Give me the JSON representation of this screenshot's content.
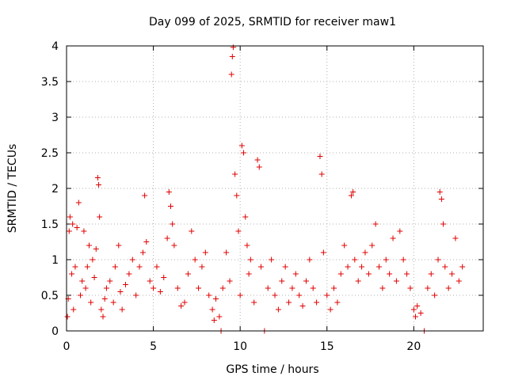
{
  "chart_data": {
    "type": "scatter",
    "title": "Day 099 of 2025, SRMTID for receiver maw1",
    "xlabel": "GPS time / hours",
    "ylabel": "SRMTID / TECUs",
    "xlim": [
      0,
      24
    ],
    "ylim": [
      0,
      4
    ],
    "xticks": [
      0,
      5,
      10,
      15,
      20
    ],
    "xtick_labels": [
      "0",
      "5",
      "10",
      "15",
      "20"
    ],
    "yticks": [
      0,
      0.5,
      1,
      1.5,
      2,
      2.5,
      3,
      3.5,
      4
    ],
    "ytick_labels": [
      "0",
      "0.5",
      "1",
      "1.5",
      "2",
      "2.5",
      "3",
      "3.5",
      "4"
    ],
    "grid": true,
    "marker": "+",
    "color": "#e00000",
    "series": [
      {
        "name": "maw1",
        "points": [
          [
            0.05,
            0.2
          ],
          [
            0.1,
            0.45
          ],
          [
            0.15,
            1.4
          ],
          [
            0.2,
            1.6
          ],
          [
            0.3,
            0.8
          ],
          [
            0.35,
            1.5
          ],
          [
            0.4,
            0.3
          ],
          [
            0.5,
            0.9
          ],
          [
            0.6,
            1.45
          ],
          [
            0.7,
            1.8
          ],
          [
            0.8,
            0.5
          ],
          [
            0.9,
            0.7
          ],
          [
            1.0,
            1.4
          ],
          [
            1.1,
            0.6
          ],
          [
            1.2,
            0.9
          ],
          [
            1.3,
            1.2
          ],
          [
            1.4,
            0.4
          ],
          [
            1.5,
            1.0
          ],
          [
            1.6,
            0.75
          ],
          [
            1.7,
            1.15
          ],
          [
            1.8,
            2.15
          ],
          [
            1.85,
            2.05
          ],
          [
            1.9,
            1.6
          ],
          [
            2.0,
            0.3
          ],
          [
            2.1,
            0.2
          ],
          [
            2.2,
            0.45
          ],
          [
            2.3,
            0.6
          ],
          [
            2.5,
            0.7
          ],
          [
            2.7,
            0.4
          ],
          [
            2.8,
            0.9
          ],
          [
            3.0,
            1.2
          ],
          [
            3.1,
            0.55
          ],
          [
            3.2,
            0.3
          ],
          [
            3.4,
            0.65
          ],
          [
            3.6,
            0.8
          ],
          [
            3.8,
            1.0
          ],
          [
            4.0,
            0.5
          ],
          [
            4.2,
            0.9
          ],
          [
            4.4,
            1.1
          ],
          [
            4.5,
            1.9
          ],
          [
            4.6,
            1.25
          ],
          [
            4.8,
            0.7
          ],
          [
            5.0,
            0.6
          ],
          [
            5.2,
            0.9
          ],
          [
            5.4,
            0.55
          ],
          [
            5.6,
            0.75
          ],
          [
            5.8,
            1.3
          ],
          [
            5.9,
            1.95
          ],
          [
            6.0,
            1.75
          ],
          [
            6.1,
            1.5
          ],
          [
            6.2,
            1.2
          ],
          [
            6.4,
            0.6
          ],
          [
            6.6,
            0.35
          ],
          [
            6.8,
            0.4
          ],
          [
            7.0,
            0.8
          ],
          [
            7.2,
            1.4
          ],
          [
            7.4,
            1.0
          ],
          [
            7.6,
            0.6
          ],
          [
            7.8,
            0.9
          ],
          [
            8.0,
            1.1
          ],
          [
            8.2,
            0.5
          ],
          [
            8.4,
            0.3
          ],
          [
            8.5,
            0.15
          ],
          [
            8.6,
            0.45
          ],
          [
            8.8,
            0.2
          ],
          [
            8.9,
            0.0
          ],
          [
            9.0,
            0.6
          ],
          [
            9.2,
            1.1
          ],
          [
            9.4,
            0.7
          ],
          [
            9.5,
            3.6
          ],
          [
            9.55,
            3.85
          ],
          [
            9.6,
            3.98
          ],
          [
            9.7,
            2.2
          ],
          [
            9.8,
            1.9
          ],
          [
            9.9,
            1.4
          ],
          [
            10.0,
            0.5
          ],
          [
            10.1,
            2.6
          ],
          [
            10.2,
            2.5
          ],
          [
            10.3,
            1.6
          ],
          [
            10.4,
            1.2
          ],
          [
            10.5,
            0.8
          ],
          [
            10.6,
            1.0
          ],
          [
            10.8,
            0.4
          ],
          [
            11.0,
            2.4
          ],
          [
            11.1,
            2.3
          ],
          [
            11.2,
            0.9
          ],
          [
            11.4,
            0.0
          ],
          [
            11.6,
            0.6
          ],
          [
            11.8,
            1.0
          ],
          [
            12.0,
            0.5
          ],
          [
            12.2,
            0.3
          ],
          [
            12.4,
            0.7
          ],
          [
            12.6,
            0.9
          ],
          [
            12.8,
            0.4
          ],
          [
            13.0,
            0.6
          ],
          [
            13.2,
            0.8
          ],
          [
            13.4,
            0.5
          ],
          [
            13.6,
            0.35
          ],
          [
            13.8,
            0.7
          ],
          [
            14.0,
            1.0
          ],
          [
            14.2,
            0.6
          ],
          [
            14.4,
            0.4
          ],
          [
            14.6,
            2.45
          ],
          [
            14.7,
            2.2
          ],
          [
            14.8,
            1.1
          ],
          [
            15.0,
            0.5
          ],
          [
            15.2,
            0.3
          ],
          [
            15.4,
            0.6
          ],
          [
            15.6,
            0.4
          ],
          [
            15.8,
            0.8
          ],
          [
            16.0,
            1.2
          ],
          [
            16.2,
            0.9
          ],
          [
            16.4,
            1.9
          ],
          [
            16.5,
            1.95
          ],
          [
            16.6,
            1.0
          ],
          [
            16.8,
            0.7
          ],
          [
            17.0,
            0.9
          ],
          [
            17.2,
            1.1
          ],
          [
            17.4,
            0.8
          ],
          [
            17.6,
            1.2
          ],
          [
            17.8,
            1.5
          ],
          [
            18.0,
            0.9
          ],
          [
            18.2,
            0.6
          ],
          [
            18.4,
            1.0
          ],
          [
            18.6,
            0.8
          ],
          [
            18.8,
            1.3
          ],
          [
            19.0,
            0.7
          ],
          [
            19.2,
            1.4
          ],
          [
            19.4,
            1.0
          ],
          [
            19.6,
            0.8
          ],
          [
            19.8,
            0.6
          ],
          [
            20.0,
            0.3
          ],
          [
            20.1,
            0.2
          ],
          [
            20.2,
            0.35
          ],
          [
            20.4,
            0.25
          ],
          [
            20.6,
            0.0
          ],
          [
            20.8,
            0.6
          ],
          [
            21.0,
            0.8
          ],
          [
            21.2,
            0.5
          ],
          [
            21.4,
            1.0
          ],
          [
            21.5,
            1.95
          ],
          [
            21.6,
            1.85
          ],
          [
            21.7,
            1.5
          ],
          [
            21.8,
            0.9
          ],
          [
            22.0,
            0.6
          ],
          [
            22.2,
            0.8
          ],
          [
            22.4,
            1.3
          ],
          [
            22.6,
            0.7
          ],
          [
            22.8,
            0.9
          ]
        ]
      }
    ]
  }
}
